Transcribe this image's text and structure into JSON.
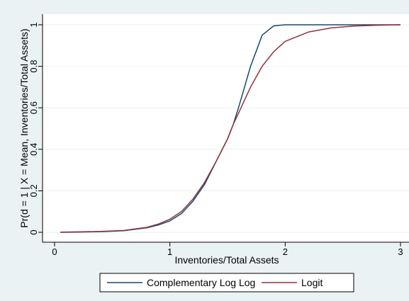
{
  "chart_data": {
    "type": "line",
    "title": "",
    "xlabel": "Inventories/Total Assets",
    "ylabel": "Pr(d = 1 | X = Mean, Inventories/Total Assets)",
    "xlim": [
      0,
      3
    ],
    "ylim": [
      0,
      1
    ],
    "xticks": [
      "0",
      "1",
      "2",
      "3"
    ],
    "yticks": [
      "0",
      "0.2",
      "0.4",
      "0.6",
      "0.8",
      "1"
    ],
    "xtick_values": [
      0,
      1,
      2,
      3
    ],
    "ytick_values": [
      0,
      0.2,
      0.4,
      0.6,
      0.8,
      1
    ],
    "grid": true,
    "legend_position": "bottom",
    "x": [
      0.05,
      0.2,
      0.4,
      0.6,
      0.8,
      0.9,
      1.0,
      1.1,
      1.2,
      1.3,
      1.4,
      1.5,
      1.55,
      1.6,
      1.7,
      1.8,
      1.9,
      2.0,
      2.2,
      2.4,
      2.6,
      2.8,
      3.0
    ],
    "series": [
      {
        "name": "Complementary Log Log",
        "color": "#1a476f",
        "values": [
          0.0,
          0.001,
          0.003,
          0.008,
          0.022,
          0.035,
          0.055,
          0.09,
          0.15,
          0.23,
          0.34,
          0.45,
          0.52,
          0.61,
          0.8,
          0.95,
          0.995,
          1.0,
          1.0,
          1.0,
          1.0,
          1.0,
          1.0
        ]
      },
      {
        "name": "Logit",
        "color": "#90353b",
        "values": [
          0.001,
          0.002,
          0.004,
          0.009,
          0.024,
          0.04,
          0.063,
          0.1,
          0.16,
          0.24,
          0.34,
          0.45,
          0.52,
          0.58,
          0.7,
          0.8,
          0.87,
          0.92,
          0.965,
          0.985,
          0.994,
          0.998,
          1.0
        ]
      }
    ]
  }
}
